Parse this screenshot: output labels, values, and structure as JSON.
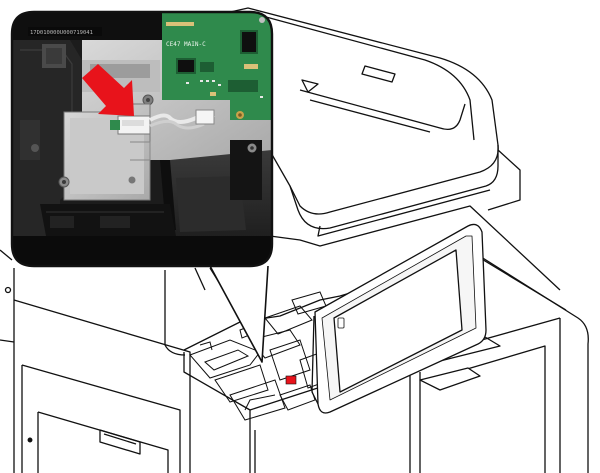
{
  "diagram": {
    "board_label": "CE47 MAIN-C",
    "serial_text": "17D010000U000719041",
    "arrow_color": "#e8131b",
    "pcb_color": "#2f8a4c"
  }
}
